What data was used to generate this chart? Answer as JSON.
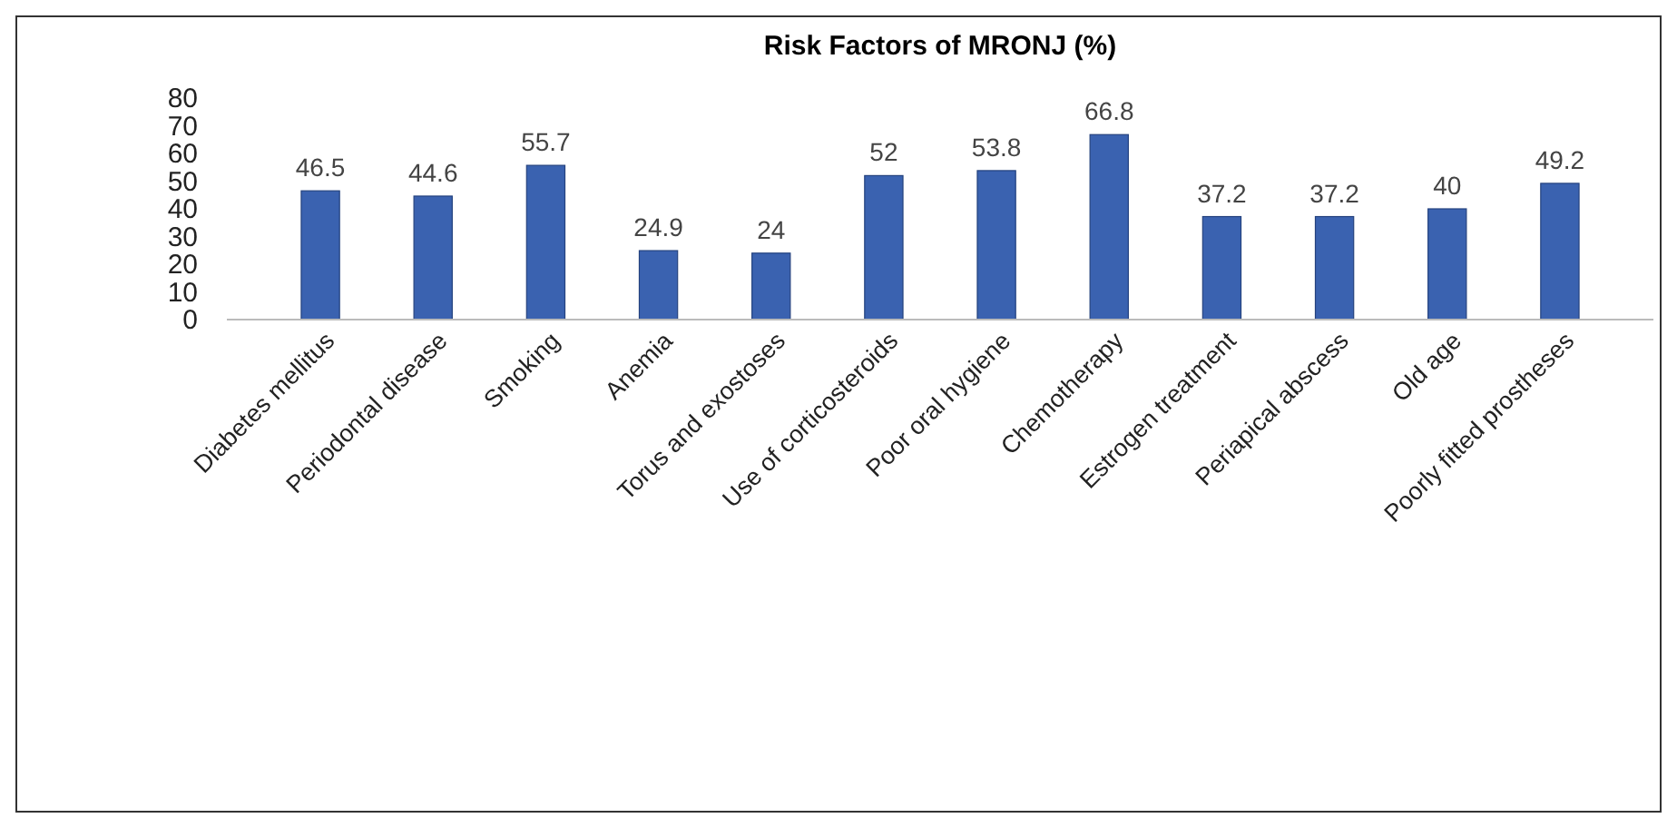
{
  "chart_data": {
    "type": "bar",
    "title": "Risk Factors of MRONJ (%)",
    "categories": [
      "Diabetes mellitus",
      "Periodontal disease",
      "Smoking",
      "Anemia",
      "Torus and exostoses",
      "Use of corticosteroids",
      "Poor oral hygiene",
      "Chemotherapy",
      "Estrogen treatment",
      "Periapical abscess",
      "Old age",
      "Poorly fitted prostheses"
    ],
    "values": [
      46.5,
      44.6,
      55.7,
      24.9,
      24,
      52,
      53.8,
      66.8,
      37.2,
      37.2,
      40,
      49.2
    ],
    "color": "#3a62b0",
    "ylim": [
      0,
      80
    ],
    "yticks": [
      0,
      10,
      20,
      30,
      40,
      50,
      60,
      70,
      80
    ],
    "grid": false,
    "data_labels": true
  }
}
